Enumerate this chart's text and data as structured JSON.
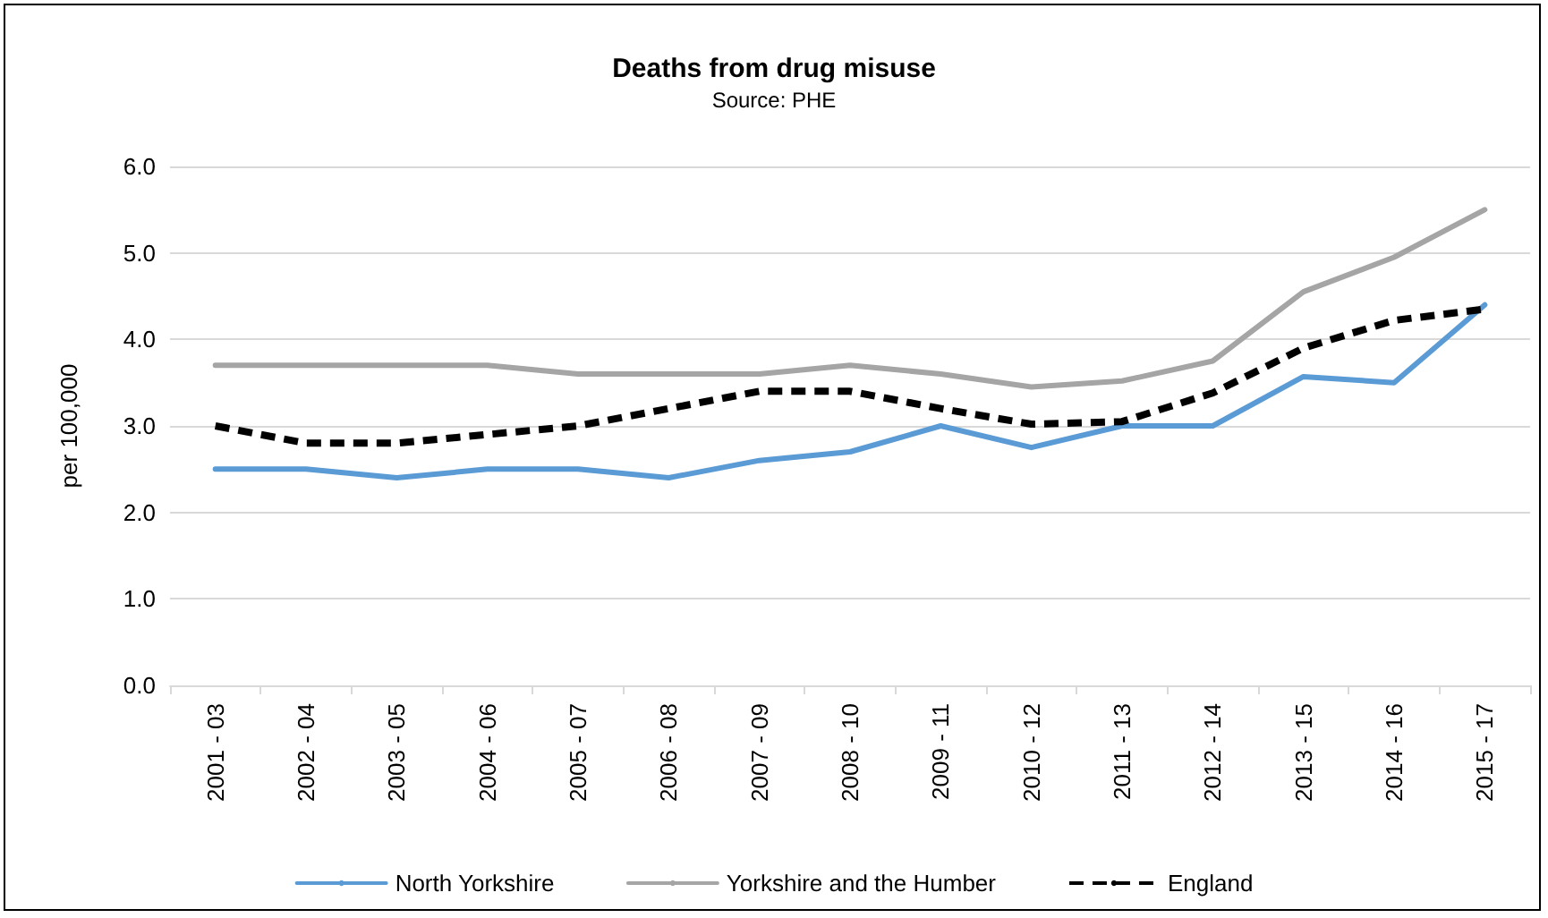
{
  "chart_data": {
    "type": "line",
    "title": "Deaths from drug misuse",
    "subtitle": "Source: PHE",
    "ylabel": "per 100,000",
    "categories": [
      "2001 - 03",
      "2002 - 04",
      "2003 - 05",
      "2004 - 06",
      "2005 - 07",
      "2006 - 08",
      "2007 - 09",
      "2008 - 10",
      "2009 - 11",
      "2010 - 12",
      "2011 - 13",
      "2012 - 14",
      "2013 - 15",
      "2014 - 16",
      "2015 - 17"
    ],
    "series": [
      {
        "name": "North Yorkshire",
        "color": "#5b9bd5",
        "line_style": "solid",
        "values": [
          2.5,
          2.5,
          2.4,
          2.5,
          2.5,
          2.4,
          2.6,
          2.7,
          3.0,
          2.75,
          3.0,
          3.0,
          3.57,
          3.5,
          4.4
        ]
      },
      {
        "name": "Yorkshire and the Humber",
        "color": "#a5a5a5",
        "line_style": "solid",
        "values": [
          3.7,
          3.7,
          3.7,
          3.7,
          3.6,
          3.6,
          3.6,
          3.7,
          3.6,
          3.45,
          3.52,
          3.75,
          4.55,
          4.95,
          5.5
        ]
      },
      {
        "name": "England",
        "color": "#000000",
        "line_style": "dashed",
        "values": [
          3.0,
          2.8,
          2.8,
          2.9,
          3.0,
          3.2,
          3.4,
          3.4,
          3.2,
          3.02,
          3.05,
          3.38,
          3.9,
          4.22,
          4.35
        ]
      }
    ],
    "ylim": [
      0,
      6
    ],
    "yticks": [
      {
        "value": 0,
        "label": "0.0"
      },
      {
        "value": 1,
        "label": "1.0"
      },
      {
        "value": 2,
        "label": "2.0"
      },
      {
        "value": 3,
        "label": "3.0"
      },
      {
        "value": 4,
        "label": "4.0"
      },
      {
        "value": 5,
        "label": "5.0"
      },
      {
        "value": 6,
        "label": "6.0"
      }
    ],
    "grid": "y",
    "legend": "bottom",
    "marker": "none"
  }
}
